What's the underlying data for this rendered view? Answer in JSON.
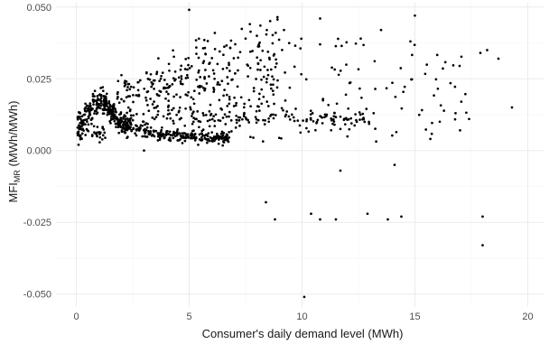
{
  "chart_data": {
    "type": "scatter",
    "title": "",
    "xlabel": "Consumer's daily demand level (MWh)",
    "ylabel_main": "MFI",
    "ylabel_sub": "MR",
    "ylabel_unit": " (MWh/MWh)",
    "xlim": [
      -0.9,
      20.7
    ],
    "ylim": [
      -0.0545,
      0.0515
    ],
    "x_ticks": [
      0,
      5,
      10,
      15,
      20
    ],
    "x_tick_labels": [
      "0",
      "5",
      "10",
      "15",
      "20"
    ],
    "y_ticks": [
      -0.05,
      -0.025,
      0.0,
      0.025,
      0.05
    ],
    "y_tick_labels": [
      "-0.050",
      "-0.025",
      "0.000",
      "0.025",
      "0.050"
    ],
    "grid": true,
    "legend": "none",
    "point_color": "#000000",
    "explicit_points": [
      [
        5.0,
        0.049
      ],
      [
        15.0,
        0.047
      ],
      [
        10.8,
        0.046
      ],
      [
        18.2,
        0.035
      ],
      [
        17.9,
        0.034
      ],
      [
        18.7,
        0.032
      ],
      [
        19.3,
        0.015
      ],
      [
        16.8,
        0.013
      ],
      [
        17.4,
        0.011
      ],
      [
        11.7,
        -0.007
      ],
      [
        14.1,
        -0.005
      ],
      [
        8.4,
        -0.018
      ],
      [
        8.8,
        -0.024
      ],
      [
        10.4,
        -0.022
      ],
      [
        10.8,
        -0.024
      ],
      [
        11.5,
        -0.024
      ],
      [
        12.9,
        -0.022
      ],
      [
        13.8,
        -0.024
      ],
      [
        14.4,
        -0.023
      ],
      [
        18.0,
        -0.023
      ],
      [
        18.0,
        -0.033
      ],
      [
        10.1,
        -0.051
      ],
      [
        3.0,
        0.0
      ],
      [
        0.1,
        0.002
      ],
      [
        7.5,
        0.039
      ],
      [
        8.0,
        0.04
      ],
      [
        9.2,
        0.042
      ],
      [
        12.6,
        0.039
      ],
      [
        13.5,
        0.042
      ],
      [
        14.8,
        0.038
      ]
    ]
  }
}
